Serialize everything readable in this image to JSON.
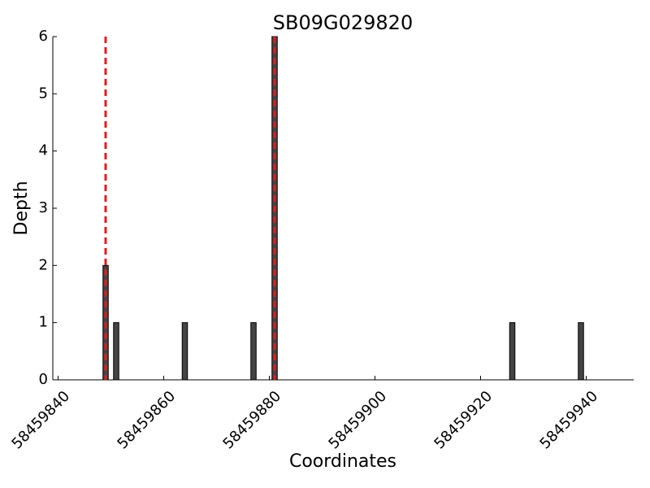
{
  "chart_data": {
    "type": "bar",
    "title": "SB09G029820",
    "x_label": "Coordinates",
    "y_label": "Depth",
    "x": [
      58459849,
      58459851,
      58459864,
      58459877,
      58459881,
      58459926,
      58459939
    ],
    "values": [
      2,
      1,
      1,
      1,
      6,
      1,
      1
    ],
    "color": "#444444",
    "xlim": [
      58459839,
      58459949
    ],
    "ylim": [
      0,
      6
    ],
    "xticks": [
      58459840,
      58459860,
      58459880,
      58459900,
      58459920,
      58459940
    ],
    "yticks": [
      0,
      1,
      2,
      3,
      4,
      5,
      6
    ],
    "vlines": [
      58459849,
      58459881
    ],
    "vline_color": "#e41a1c"
  }
}
